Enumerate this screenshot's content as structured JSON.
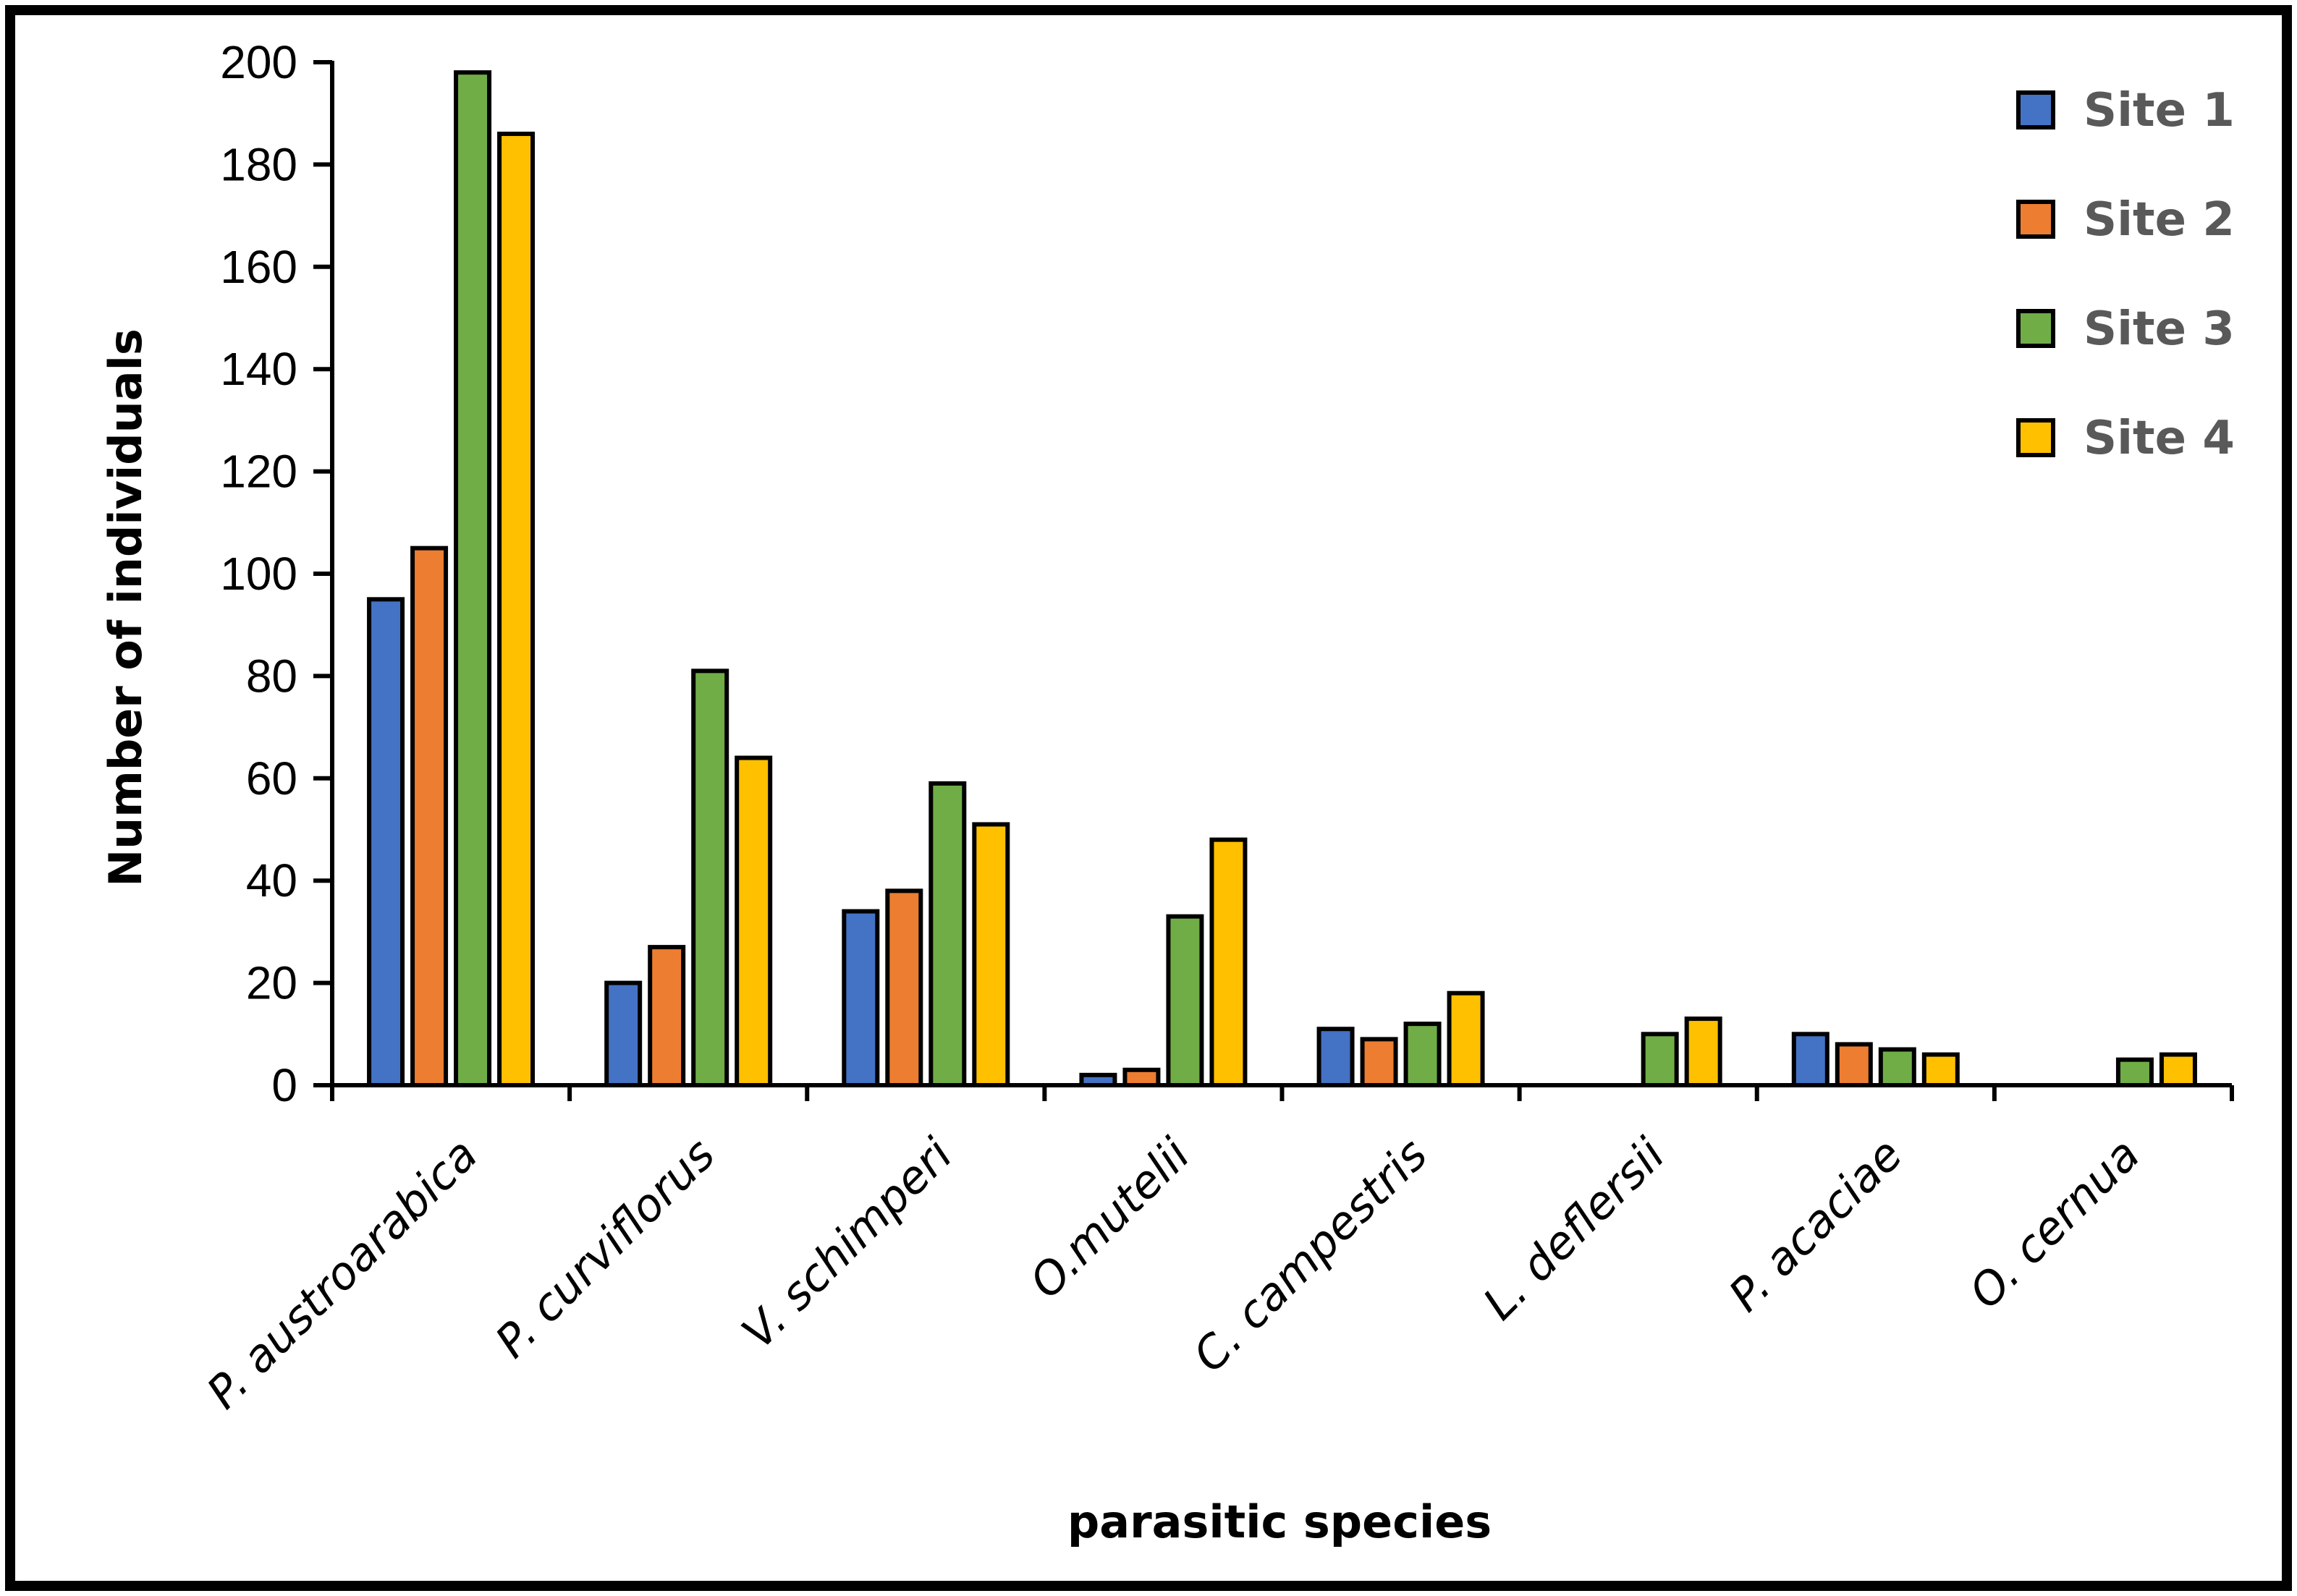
{
  "chart_data": {
    "type": "bar",
    "title": "",
    "xlabel": "parasitic species",
    "ylabel": "Number of individuals",
    "ylim": [
      0,
      200
    ],
    "yticks": [
      0,
      20,
      40,
      60,
      80,
      100,
      120,
      140,
      160,
      180,
      200
    ],
    "categories": [
      "P. austroarabica",
      "P. curviflorus",
      "V. schimperi",
      "O.mutelii",
      "C. campestris",
      "L. deflersii",
      "P. acaciae",
      "O. cernua"
    ],
    "series": [
      {
        "name": "Site 1",
        "color": "#4472C4",
        "values": [
          95,
          20,
          34,
          2,
          11,
          0,
          10,
          0
        ]
      },
      {
        "name": "Site 2",
        "color": "#ED7D31",
        "values": [
          105,
          27,
          38,
          3,
          9,
          0,
          8,
          0
        ]
      },
      {
        "name": "Site 3",
        "color": "#70AD47",
        "values": [
          198,
          81,
          59,
          33,
          12,
          10,
          7,
          5
        ]
      },
      {
        "name": "Site 4",
        "color": "#FFC000",
        "values": [
          186,
          64,
          51,
          48,
          18,
          13,
          6,
          6
        ]
      }
    ],
    "legend_position": "top-right",
    "grid": false
  }
}
